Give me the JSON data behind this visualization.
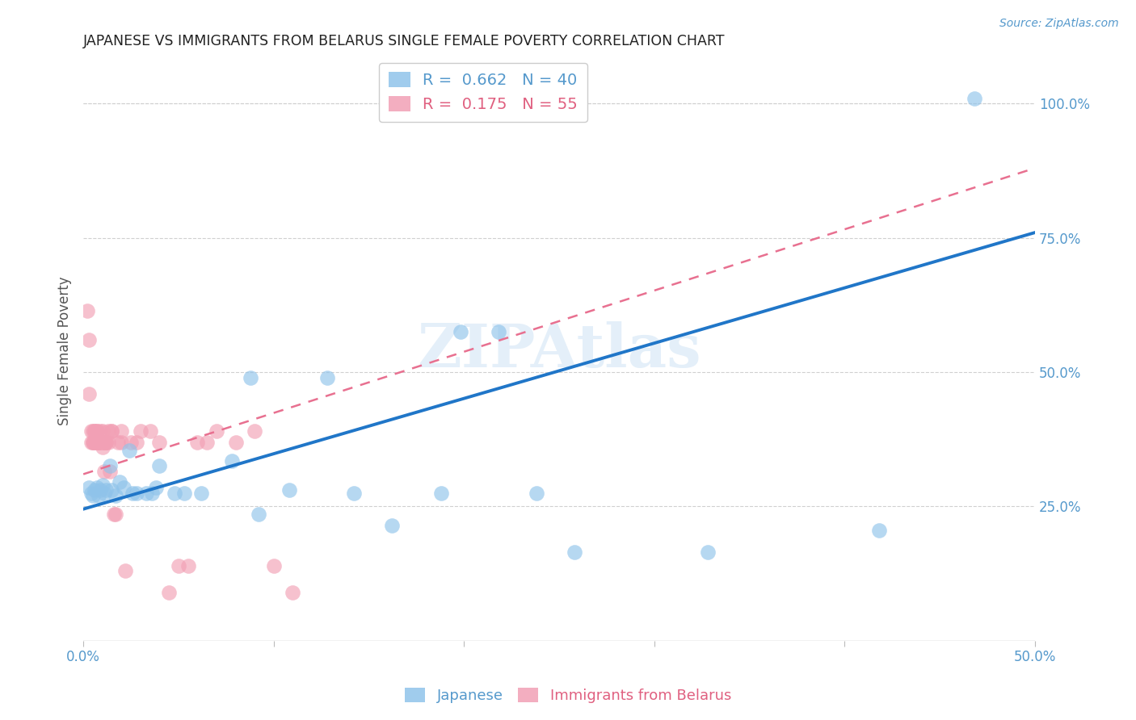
{
  "title": "JAPANESE VS IMMIGRANTS FROM BELARUS SINGLE FEMALE POVERTY CORRELATION CHART",
  "source": "Source: ZipAtlas.com",
  "ylabel": "Single Female Poverty",
  "xlim": [
    0.0,
    0.5
  ],
  "ylim": [
    0.0,
    1.08
  ],
  "xtick_positions": [
    0.0,
    0.1,
    0.2,
    0.3,
    0.4,
    0.5
  ],
  "xtick_labels": [
    "0.0%",
    "",
    "",
    "",
    "",
    "50.0%"
  ],
  "ytick_labels_right": [
    "25.0%",
    "50.0%",
    "75.0%",
    "100.0%"
  ],
  "ytick_positions_right": [
    0.25,
    0.5,
    0.75,
    1.0
  ],
  "legend_blue_r": "0.662",
  "legend_blue_n": "40",
  "legend_pink_r": "0.175",
  "legend_pink_n": "55",
  "blue_color": "#8fc3ea",
  "pink_color": "#f2a0b5",
  "line_blue_color": "#2076c8",
  "line_pink_color": "#e87090",
  "watermark": "ZIPAtlas",
  "japanese_points": [
    [
      0.003,
      0.285
    ],
    [
      0.004,
      0.275
    ],
    [
      0.005,
      0.27
    ],
    [
      0.006,
      0.28
    ],
    [
      0.007,
      0.285
    ],
    [
      0.008,
      0.27
    ],
    [
      0.009,
      0.28
    ],
    [
      0.01,
      0.29
    ],
    [
      0.011,
      0.275
    ],
    [
      0.012,
      0.28
    ],
    [
      0.014,
      0.325
    ],
    [
      0.015,
      0.28
    ],
    [
      0.017,
      0.27
    ],
    [
      0.019,
      0.295
    ],
    [
      0.021,
      0.285
    ],
    [
      0.024,
      0.355
    ],
    [
      0.026,
      0.275
    ],
    [
      0.028,
      0.275
    ],
    [
      0.033,
      0.275
    ],
    [
      0.036,
      0.275
    ],
    [
      0.038,
      0.285
    ],
    [
      0.04,
      0.325
    ],
    [
      0.048,
      0.275
    ],
    [
      0.053,
      0.275
    ],
    [
      0.062,
      0.275
    ],
    [
      0.078,
      0.335
    ],
    [
      0.088,
      0.49
    ],
    [
      0.092,
      0.235
    ],
    [
      0.108,
      0.28
    ],
    [
      0.128,
      0.49
    ],
    [
      0.142,
      0.275
    ],
    [
      0.162,
      0.215
    ],
    [
      0.188,
      0.275
    ],
    [
      0.198,
      0.575
    ],
    [
      0.218,
      0.575
    ],
    [
      0.238,
      0.275
    ],
    [
      0.258,
      0.165
    ],
    [
      0.328,
      0.165
    ],
    [
      0.418,
      0.205
    ],
    [
      0.468,
      1.01
    ]
  ],
  "belarus_points": [
    [
      0.002,
      0.615
    ],
    [
      0.003,
      0.56
    ],
    [
      0.003,
      0.46
    ],
    [
      0.004,
      0.37
    ],
    [
      0.004,
      0.39
    ],
    [
      0.005,
      0.37
    ],
    [
      0.005,
      0.39
    ],
    [
      0.005,
      0.37
    ],
    [
      0.006,
      0.37
    ],
    [
      0.006,
      0.39
    ],
    [
      0.006,
      0.37
    ],
    [
      0.006,
      0.39
    ],
    [
      0.007,
      0.37
    ],
    [
      0.007,
      0.39
    ],
    [
      0.007,
      0.37
    ],
    [
      0.007,
      0.39
    ],
    [
      0.008,
      0.37
    ],
    [
      0.008,
      0.37
    ],
    [
      0.008,
      0.37
    ],
    [
      0.009,
      0.39
    ],
    [
      0.009,
      0.37
    ],
    [
      0.01,
      0.39
    ],
    [
      0.01,
      0.36
    ],
    [
      0.01,
      0.37
    ],
    [
      0.011,
      0.37
    ],
    [
      0.011,
      0.37
    ],
    [
      0.011,
      0.315
    ],
    [
      0.012,
      0.37
    ],
    [
      0.012,
      0.37
    ],
    [
      0.013,
      0.39
    ],
    [
      0.013,
      0.37
    ],
    [
      0.014,
      0.315
    ],
    [
      0.015,
      0.39
    ],
    [
      0.015,
      0.39
    ],
    [
      0.016,
      0.235
    ],
    [
      0.017,
      0.235
    ],
    [
      0.018,
      0.37
    ],
    [
      0.02,
      0.37
    ],
    [
      0.02,
      0.39
    ],
    [
      0.022,
      0.13
    ],
    [
      0.025,
      0.37
    ],
    [
      0.028,
      0.37
    ],
    [
      0.03,
      0.39
    ],
    [
      0.035,
      0.39
    ],
    [
      0.04,
      0.37
    ],
    [
      0.045,
      0.09
    ],
    [
      0.05,
      0.14
    ],
    [
      0.055,
      0.14
    ],
    [
      0.06,
      0.37
    ],
    [
      0.065,
      0.37
    ],
    [
      0.07,
      0.39
    ],
    [
      0.08,
      0.37
    ],
    [
      0.09,
      0.39
    ],
    [
      0.1,
      0.14
    ],
    [
      0.11,
      0.09
    ]
  ],
  "blue_line": {
    "x0": 0.0,
    "x1": 0.5,
    "y0": 0.245,
    "y1": 0.76
  },
  "pink_line": {
    "x0": 0.0,
    "x1": 0.5,
    "y0": 0.31,
    "y1": 0.88
  }
}
